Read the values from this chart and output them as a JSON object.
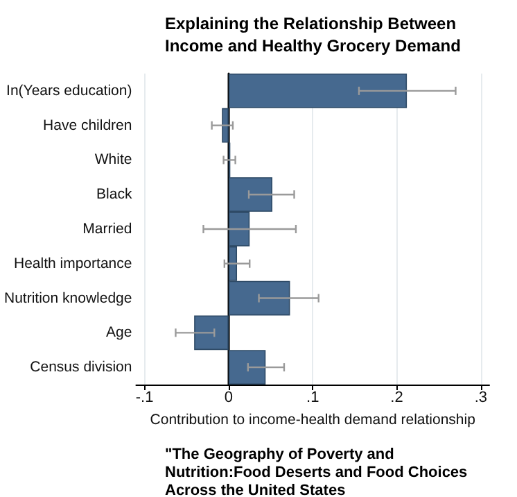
{
  "chart_data": {
    "type": "bar",
    "orientation": "horizontal",
    "title": "Explaining the Relationship Between Income and Healthy Grocery Demand",
    "xlabel": "Contribution to income-health demand relationship",
    "annotations": [
      "\"The Geography of Poverty and Nutrition:Food Deserts and Food Choices Across the United States"
    ],
    "categories": [
      "In(Years education)",
      "Have children",
      "White",
      "Black",
      "Married",
      "Health importance",
      "Nutrition knowledge",
      "Age",
      "Census division"
    ],
    "series": [
      {
        "color": "#46698f",
        "values": [
          0.212,
          -0.008,
          0.002,
          0.052,
          0.025,
          0.01,
          0.073,
          -0.041,
          0.044
        ],
        "errors": [
          [
            0.155,
            0.27
          ],
          [
            -0.02,
            0.005
          ],
          [
            -0.006,
            0.008
          ],
          [
            0.024,
            0.078
          ],
          [
            -0.03,
            0.08
          ],
          [
            -0.005,
            0.025
          ],
          [
            0.036,
            0.107
          ],
          [
            -0.063,
            -0.017
          ],
          [
            0.023,
            0.066
          ]
        ]
      }
    ],
    "xlim": [
      -0.11,
      0.31
    ],
    "xticks": [
      {
        "value": -0.1,
        "label": "-.1"
      },
      {
        "value": 0,
        "label": "0"
      },
      {
        "value": 0.1,
        "label": ".1"
      },
      {
        "value": 0.2,
        "label": ".2"
      },
      {
        "value": 0.3,
        "label": ".3"
      }
    ],
    "grid": "x"
  }
}
